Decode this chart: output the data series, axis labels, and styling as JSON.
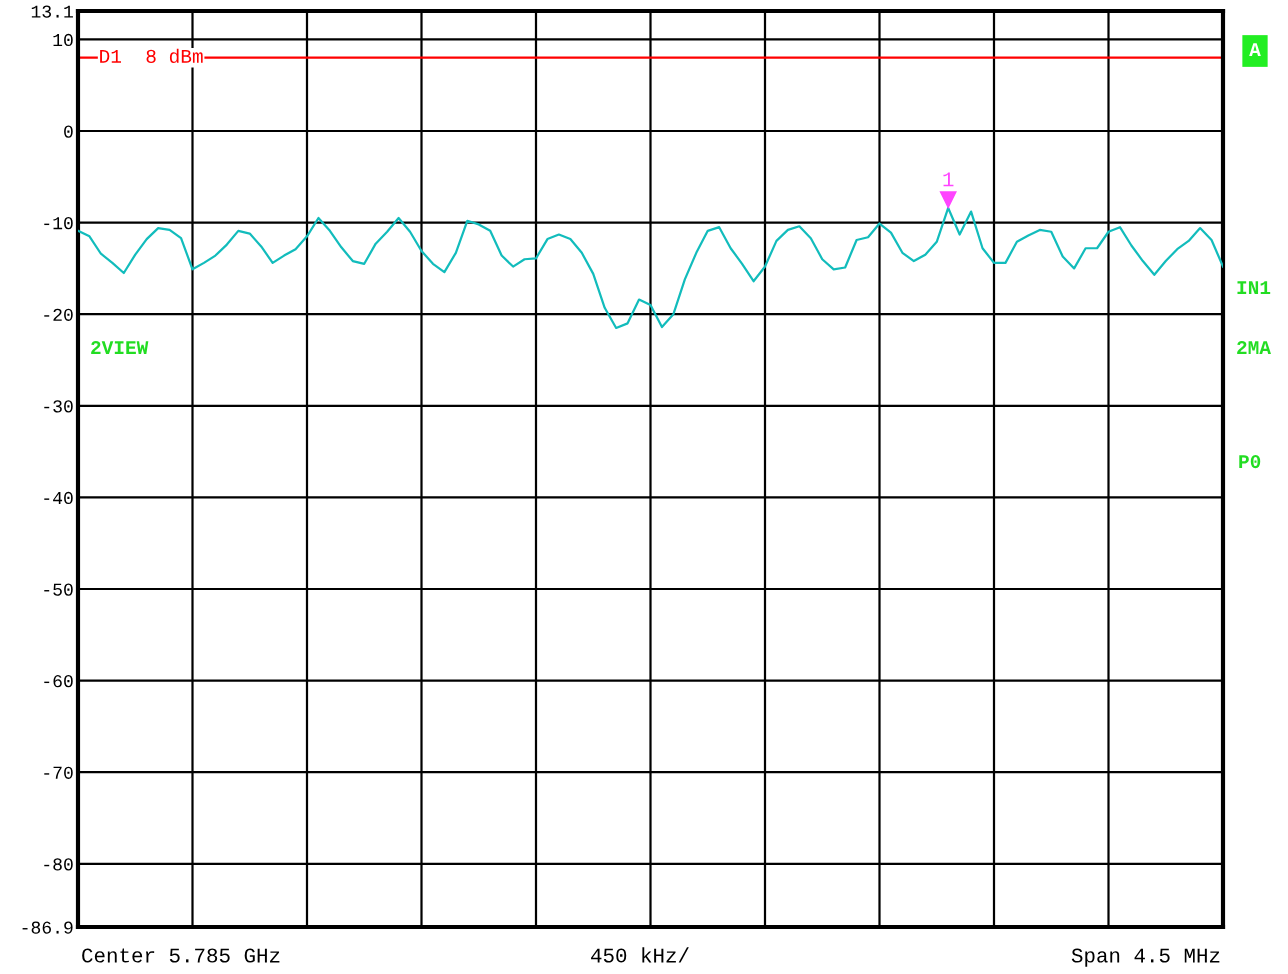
{
  "chart_data": {
    "type": "line",
    "categories": [
      null,
      null,
      null,
      null,
      null,
      null,
      null,
      null,
      null,
      null,
      null,
      null,
      null,
      null,
      null,
      null,
      null,
      null,
      null,
      null,
      null,
      null,
      null,
      null,
      null,
      null,
      null,
      null,
      null,
      null,
      null,
      null,
      null,
      null,
      null,
      null,
      null,
      null,
      null,
      null,
      null,
      null,
      null,
      null,
      null,
      null,
      null,
      null,
      null,
      null,
      null,
      null,
      null,
      null,
      null,
      null,
      null,
      null,
      null,
      null,
      null,
      null,
      null,
      null,
      null,
      null,
      null,
      null,
      null,
      null,
      null,
      null,
      null,
      null,
      null,
      null,
      null,
      null,
      null,
      null,
      null,
      null,
      null,
      null,
      null,
      null,
      null,
      null,
      null,
      null,
      null,
      null,
      null,
      null,
      null,
      null,
      null,
      null,
      null,
      null,
      null
    ],
    "series": [
      {
        "color": "#12bcbc",
        "values": [
          -10.9,
          -11.5,
          -13.4,
          -14.4,
          -15.5,
          -13.5,
          -11.8,
          -10.6,
          -10.8,
          -11.7,
          -15.1,
          -14.4,
          -13.6,
          -12.4,
          -10.9,
          -11.2,
          -12.6,
          -14.4,
          -13.6,
          -12.9,
          -11.5,
          -9.5,
          -10.9,
          -12.7,
          -14.2,
          -14.5,
          -12.3,
          -11.0,
          -9.5,
          -11.0,
          -13.1,
          -14.5,
          -15.4,
          -13.3,
          -9.8,
          -10.2,
          -10.9,
          -13.6,
          -14.8,
          -14.0,
          -13.9,
          -11.8,
          -11.3,
          -11.8,
          -13.3,
          -15.6,
          -19.3,
          -21.5,
          -21.0,
          -18.4,
          -19.0,
          -21.4,
          -20.0,
          -16.2,
          -13.3,
          -10.9,
          -10.5,
          -12.8,
          -14.5,
          -16.4,
          -14.8,
          -12.0,
          -10.8,
          -10.4,
          -11.7,
          -14.0,
          -15.1,
          -14.9,
          -11.9,
          -11.6,
          -10.1,
          -11.1,
          -13.3,
          -14.2,
          -13.5,
          -12.1,
          -8.4,
          -11.3,
          -8.8,
          -12.8,
          -14.4,
          -14.4,
          -12.1,
          -11.4,
          -10.8,
          -11.0,
          -13.7,
          -15.0,
          -12.8,
          -12.8,
          -11.0,
          -10.5,
          -12.5,
          -14.2,
          -15.7,
          -14.2,
          -12.9,
          -12.0,
          -10.6,
          -11.9,
          -14.8
        ]
      }
    ],
    "ylim": [
      -86.9,
      13.1
    ],
    "yticks": [
      13.1,
      10,
      0,
      -10,
      -20,
      -30,
      -40,
      -50,
      -60,
      -70,
      -80,
      -86.9
    ],
    "grid": true,
    "marker": "none",
    "line_style": "solid",
    "ref_lines": [
      {
        "axis": "y",
        "value": 8,
        "label": "D1  8 dBm",
        "color": "#ff0000",
        "line_style": "solid"
      }
    ],
    "annotations": [
      {
        "text": "1",
        "y": -8.4
      },
      "Center 5.785 GHz",
      "450 kHz/",
      "Span 4.5 MHz",
      "2VIEW",
      "A",
      "IN1",
      "2MA",
      "P0"
    ]
  }
}
